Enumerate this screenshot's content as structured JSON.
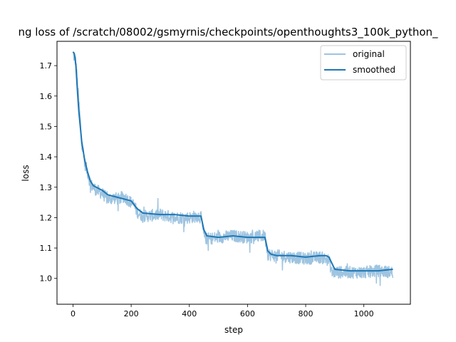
{
  "chart_data": {
    "type": "line",
    "title": "ng loss of /scratch/08002/gsmyrnis/checkpoints/openthoughts3_100k_python_",
    "xlabel": "step",
    "ylabel": "loss",
    "xlim": [
      -55,
      1160
    ],
    "ylim": [
      0.915,
      1.78
    ],
    "xticks": [
      0,
      200,
      400,
      600,
      800,
      1000
    ],
    "xtick_labels": [
      "0",
      "200",
      "400",
      "600",
      "800",
      "1000"
    ],
    "yticks": [
      1.0,
      1.1,
      1.2,
      1.3,
      1.4,
      1.5,
      1.6,
      1.7
    ],
    "ytick_labels": [
      "1.0",
      "1.1",
      "1.2",
      "1.3",
      "1.4",
      "1.5",
      "1.6",
      "1.7"
    ],
    "grid": false,
    "legend_position": "top-right",
    "series": [
      {
        "name": "original",
        "color": "#9ec4e0",
        "style": "noisy",
        "x": [
          0,
          10,
          20,
          30,
          40,
          50,
          60,
          80,
          100,
          120,
          140,
          160,
          170,
          180,
          200,
          210,
          220,
          230,
          250,
          300,
          350,
          400,
          430,
          440,
          450,
          460,
          500,
          550,
          600,
          650,
          660,
          670,
          690,
          700,
          750,
          800,
          850,
          880,
          890,
          900,
          950,
          1000,
          1050,
          1100
        ],
        "values": [
          1.74,
          1.71,
          1.58,
          1.45,
          1.38,
          1.35,
          1.31,
          1.29,
          1.28,
          1.26,
          1.265,
          1.26,
          1.27,
          1.265,
          1.25,
          1.24,
          1.22,
          1.21,
          1.205,
          1.21,
          1.2,
          1.2,
          1.205,
          1.2,
          1.14,
          1.13,
          1.135,
          1.14,
          1.135,
          1.14,
          1.14,
          1.08,
          1.075,
          1.075,
          1.07,
          1.065,
          1.07,
          1.06,
          1.02,
          1.02,
          1.02,
          1.02,
          1.025,
          1.02
        ],
        "noise": 0.02
      },
      {
        "name": "smoothed",
        "color": "#1f77b4",
        "style": "smooth",
        "x": [
          0,
          5,
          10,
          15,
          20,
          30,
          40,
          50,
          60,
          70,
          80,
          100,
          120,
          140,
          160,
          180,
          200,
          220,
          240,
          300,
          350,
          400,
          440,
          450,
          460,
          500,
          550,
          600,
          660,
          670,
          680,
          700,
          750,
          800,
          850,
          870,
          880,
          890,
          900,
          950,
          1000,
          1050,
          1100
        ],
        "values": [
          1.745,
          1.74,
          1.7,
          1.62,
          1.55,
          1.45,
          1.39,
          1.35,
          1.32,
          1.305,
          1.3,
          1.29,
          1.275,
          1.27,
          1.265,
          1.26,
          1.255,
          1.23,
          1.215,
          1.21,
          1.21,
          1.205,
          1.205,
          1.16,
          1.14,
          1.135,
          1.14,
          1.135,
          1.135,
          1.09,
          1.08,
          1.075,
          1.075,
          1.07,
          1.075,
          1.075,
          1.07,
          1.05,
          1.03,
          1.025,
          1.025,
          1.025,
          1.03
        ]
      }
    ]
  }
}
